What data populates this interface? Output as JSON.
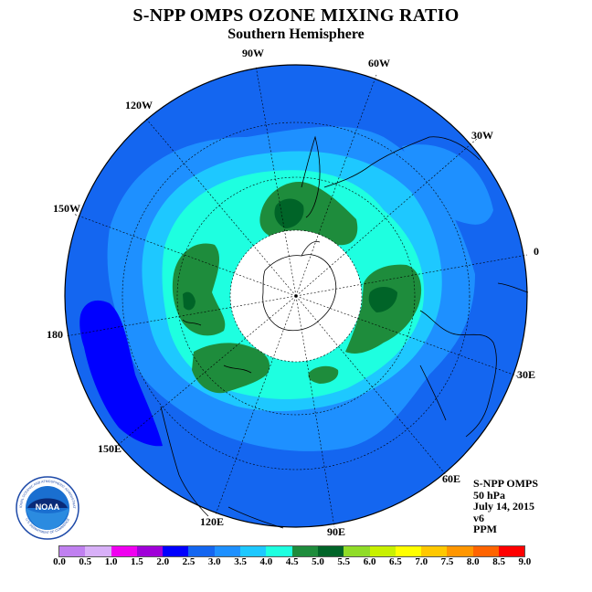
{
  "title": "S-NPP OMPS OZONE MIXING RATIO",
  "subtitle": "Southern Hemisphere",
  "longitude_labels": [
    "90W",
    "60W",
    "30W",
    "0",
    "30E",
    "60E",
    "90E",
    "120E",
    "150E",
    "180",
    "150W",
    "120W"
  ],
  "info": {
    "instrument": "S-NPP OMPS",
    "level": "50 hPa",
    "date": "July 14, 2015",
    "version": "v6",
    "units": "PPM"
  },
  "logo": {
    "text": "NOAA",
    "ring_text": "NATIONAL OCEANIC AND ATMOSPHERIC ADMINISTRATION",
    "ring_text_bottom": "U.S. DEPARTMENT OF COMMERCE"
  },
  "colorbar": {
    "ticks": [
      "0.0",
      "0.5",
      "1.0",
      "1.5",
      "2.0",
      "2.5",
      "3.0",
      "3.5",
      "4.0",
      "4.5",
      "5.0",
      "5.5",
      "6.0",
      "6.5",
      "7.0",
      "7.5",
      "8.0",
      "8.5",
      "9.0"
    ],
    "colors": [
      "#c080f0",
      "#d8b0f8",
      "#f000f0",
      "#a000d8",
      "#0000ff",
      "#1466f0",
      "#1e90ff",
      "#1ec8ff",
      "#1effe0",
      "#1e8c3c",
      "#006428",
      "#90dc28",
      "#c8f000",
      "#ffff00",
      "#ffc800",
      "#ff9600",
      "#ff6400",
      "#ff0000",
      "#8b5a3c"
    ]
  },
  "map_colors": {
    "level_2_0": "#0000ff",
    "level_2_5": "#1466f0",
    "level_3_0": "#1e90ff",
    "level_3_5": "#1ec8ff",
    "level_4_0": "#1effe0",
    "level_4_5": "#1e8c3c",
    "level_5_0": "#006428",
    "no_data": "#ffffff"
  }
}
